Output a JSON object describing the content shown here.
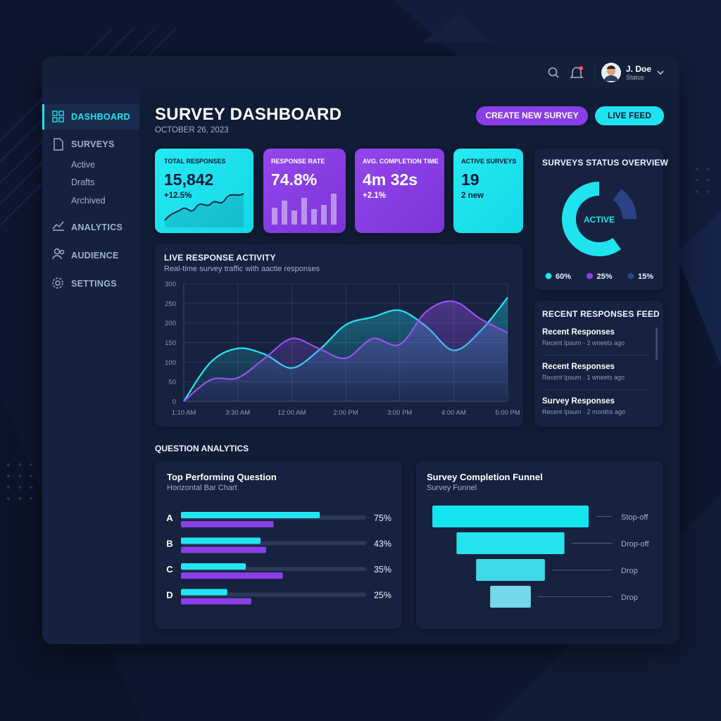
{
  "header": {
    "user_name": "J. Doe",
    "user_status": "Status"
  },
  "sidebar": {
    "items": [
      {
        "label": "DASHBOARD"
      },
      {
        "label": "SURVEYS",
        "children": [
          "Active",
          "Drafts",
          "Archived"
        ]
      },
      {
        "label": "ANALYTICS"
      },
      {
        "label": "AUDIENCE"
      },
      {
        "label": "SETTINGS"
      }
    ]
  },
  "page": {
    "title": "SURVEY DASHBOARD",
    "date": "OCTOBER 26, 2023",
    "buttons": [
      "CREATE NEW SURVEY",
      "LIVE FEED"
    ]
  },
  "kpis": [
    {
      "label": "TOTAL RESPONSES",
      "value": "15,842",
      "change": "+12.5%"
    },
    {
      "label": "RESPONSE RATE",
      "value": "74.8%"
    },
    {
      "label": "AVG. COMPLETION TIME",
      "value": "4m 32s",
      "change": "+2.1%"
    },
    {
      "label": "ACTIVE SURVEYS",
      "value": "19",
      "change": "2 new"
    }
  ],
  "status_overview": {
    "type": "donut",
    "title": "SURVEYS STATUS OVERVIEW",
    "center_label": "ACTIVE",
    "values": [
      60,
      25,
      15
    ],
    "value_labels": [
      "60%",
      "25%",
      "15%"
    ],
    "colors": [
      "#1fe3ef",
      "#8a3ee6",
      "#2b4287"
    ]
  },
  "live_activity": {
    "type": "line",
    "title": "LIVE RESPONSE ACTIVITY",
    "subtitle": "Real-time survey traffic with aactie responses",
    "categories": [
      "1:10 AM",
      null,
      "3:30 AM",
      null,
      "12:00 AM",
      null,
      "2:00 PM",
      null,
      "3:00 PM",
      null,
      "4:00 AM",
      null,
      "5:00 PM"
    ],
    "ylim": [
      0,
      300
    ],
    "yticks": [
      0,
      50,
      100,
      150,
      200,
      250,
      300
    ],
    "grid": true,
    "series": [
      {
        "color": "#22e6f2",
        "values": [
          0,
          100,
          135,
          120,
          85,
          130,
          195,
          215,
          232,
          190,
          130,
          180,
          265
        ]
      },
      {
        "color": "#9b4ff0",
        "values": [
          0,
          55,
          60,
          110,
          160,
          135,
          110,
          160,
          145,
          230,
          255,
          210,
          175
        ]
      }
    ]
  },
  "feed": {
    "title": "RECENT RESPONSES FEED",
    "items": [
      {
        "title": "Recent Responses",
        "meta": "Recent Ipsum · 2 wneets ago"
      },
      {
        "title": "Recent Responses",
        "meta": "Recent Ipsum · 1 wneets ago"
      },
      {
        "title": "Survey Responses",
        "meta": "Recent Ipsum · 2 months ago"
      }
    ]
  },
  "question_analytics": {
    "title": "QUESTION ANALYTICS",
    "top_question": {
      "type": "hbar",
      "title": "Top Performing Question",
      "subtitle": "Horizontal Bar Chart",
      "categories": [
        "A",
        "B",
        "C",
        "D"
      ],
      "xlim": [
        0,
        100
      ],
      "series": [
        {
          "color": "#22e6f2",
          "values": [
            75,
            43,
            35,
            25
          ],
          "value_labels": [
            "75%",
            "43%",
            "35%",
            "25%"
          ]
        },
        {
          "color": "#8a3ee6",
          "values": [
            50,
            46,
            55,
            38
          ]
        }
      ]
    },
    "funnel": {
      "type": "funnel",
      "title": "Survey Completion Funnel",
      "subtitle": "Survey Funnel",
      "categories": [
        "Stop-off",
        "Drop-off",
        "Drop",
        "Drop"
      ],
      "values": [
        100,
        69,
        44,
        26
      ],
      "xlim": [
        0,
        100
      ],
      "colors": [
        "#14e4f0",
        "#26e2ee",
        "#3fd9e8",
        "#74d8ea"
      ]
    }
  }
}
